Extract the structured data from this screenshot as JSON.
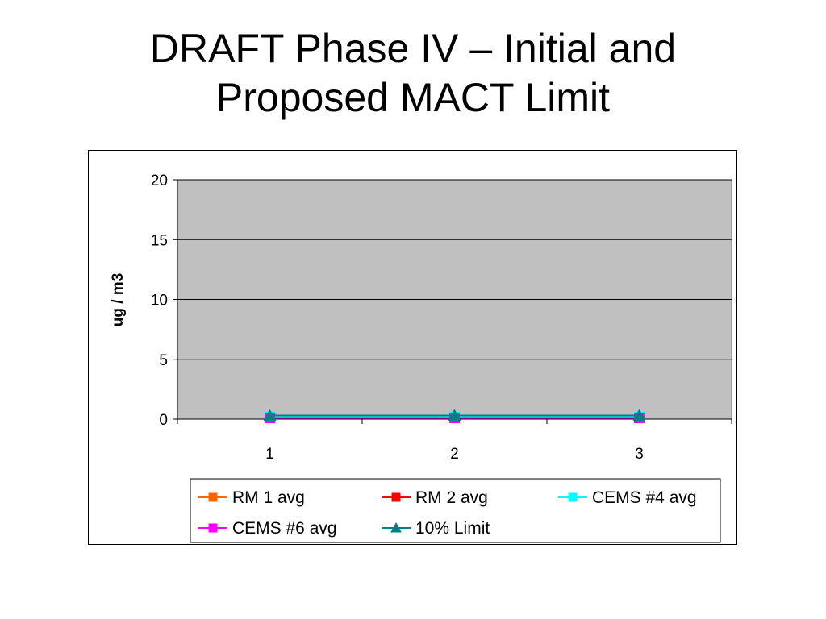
{
  "slide": {
    "title_line1": "DRAFT Phase IV – Initial and",
    "title_line2": "Proposed MACT Limit"
  },
  "chart_data": {
    "type": "line",
    "title": "",
    "xlabel": "",
    "ylabel": "ug / m3",
    "categories": [
      "1",
      "2",
      "3"
    ],
    "ylim": [
      0,
      20
    ],
    "yticks": [
      0,
      5,
      10,
      15,
      20
    ],
    "grid": true,
    "plot_background": "#c0c0c0",
    "legend_position": "bottom",
    "series": [
      {
        "name": "RM 1 avg",
        "values": [
          0.1,
          0.1,
          0.1
        ],
        "color": "#ff6600",
        "marker": "square"
      },
      {
        "name": "RM 2 avg",
        "values": [
          0.1,
          0.1,
          0.1
        ],
        "color": "#ff0000",
        "marker": "square"
      },
      {
        "name": "CEMS #4 avg",
        "values": [
          0.2,
          0.2,
          0.2
        ],
        "color": "#00ffff",
        "marker": "square"
      },
      {
        "name": "CEMS #6 avg",
        "values": [
          0.1,
          0.1,
          0.1
        ],
        "color": "#ff00ff",
        "marker": "square"
      },
      {
        "name": "10% Limit",
        "values": [
          0.3,
          0.3,
          0.3
        ],
        "color": "#008080",
        "marker": "triangle"
      }
    ]
  }
}
